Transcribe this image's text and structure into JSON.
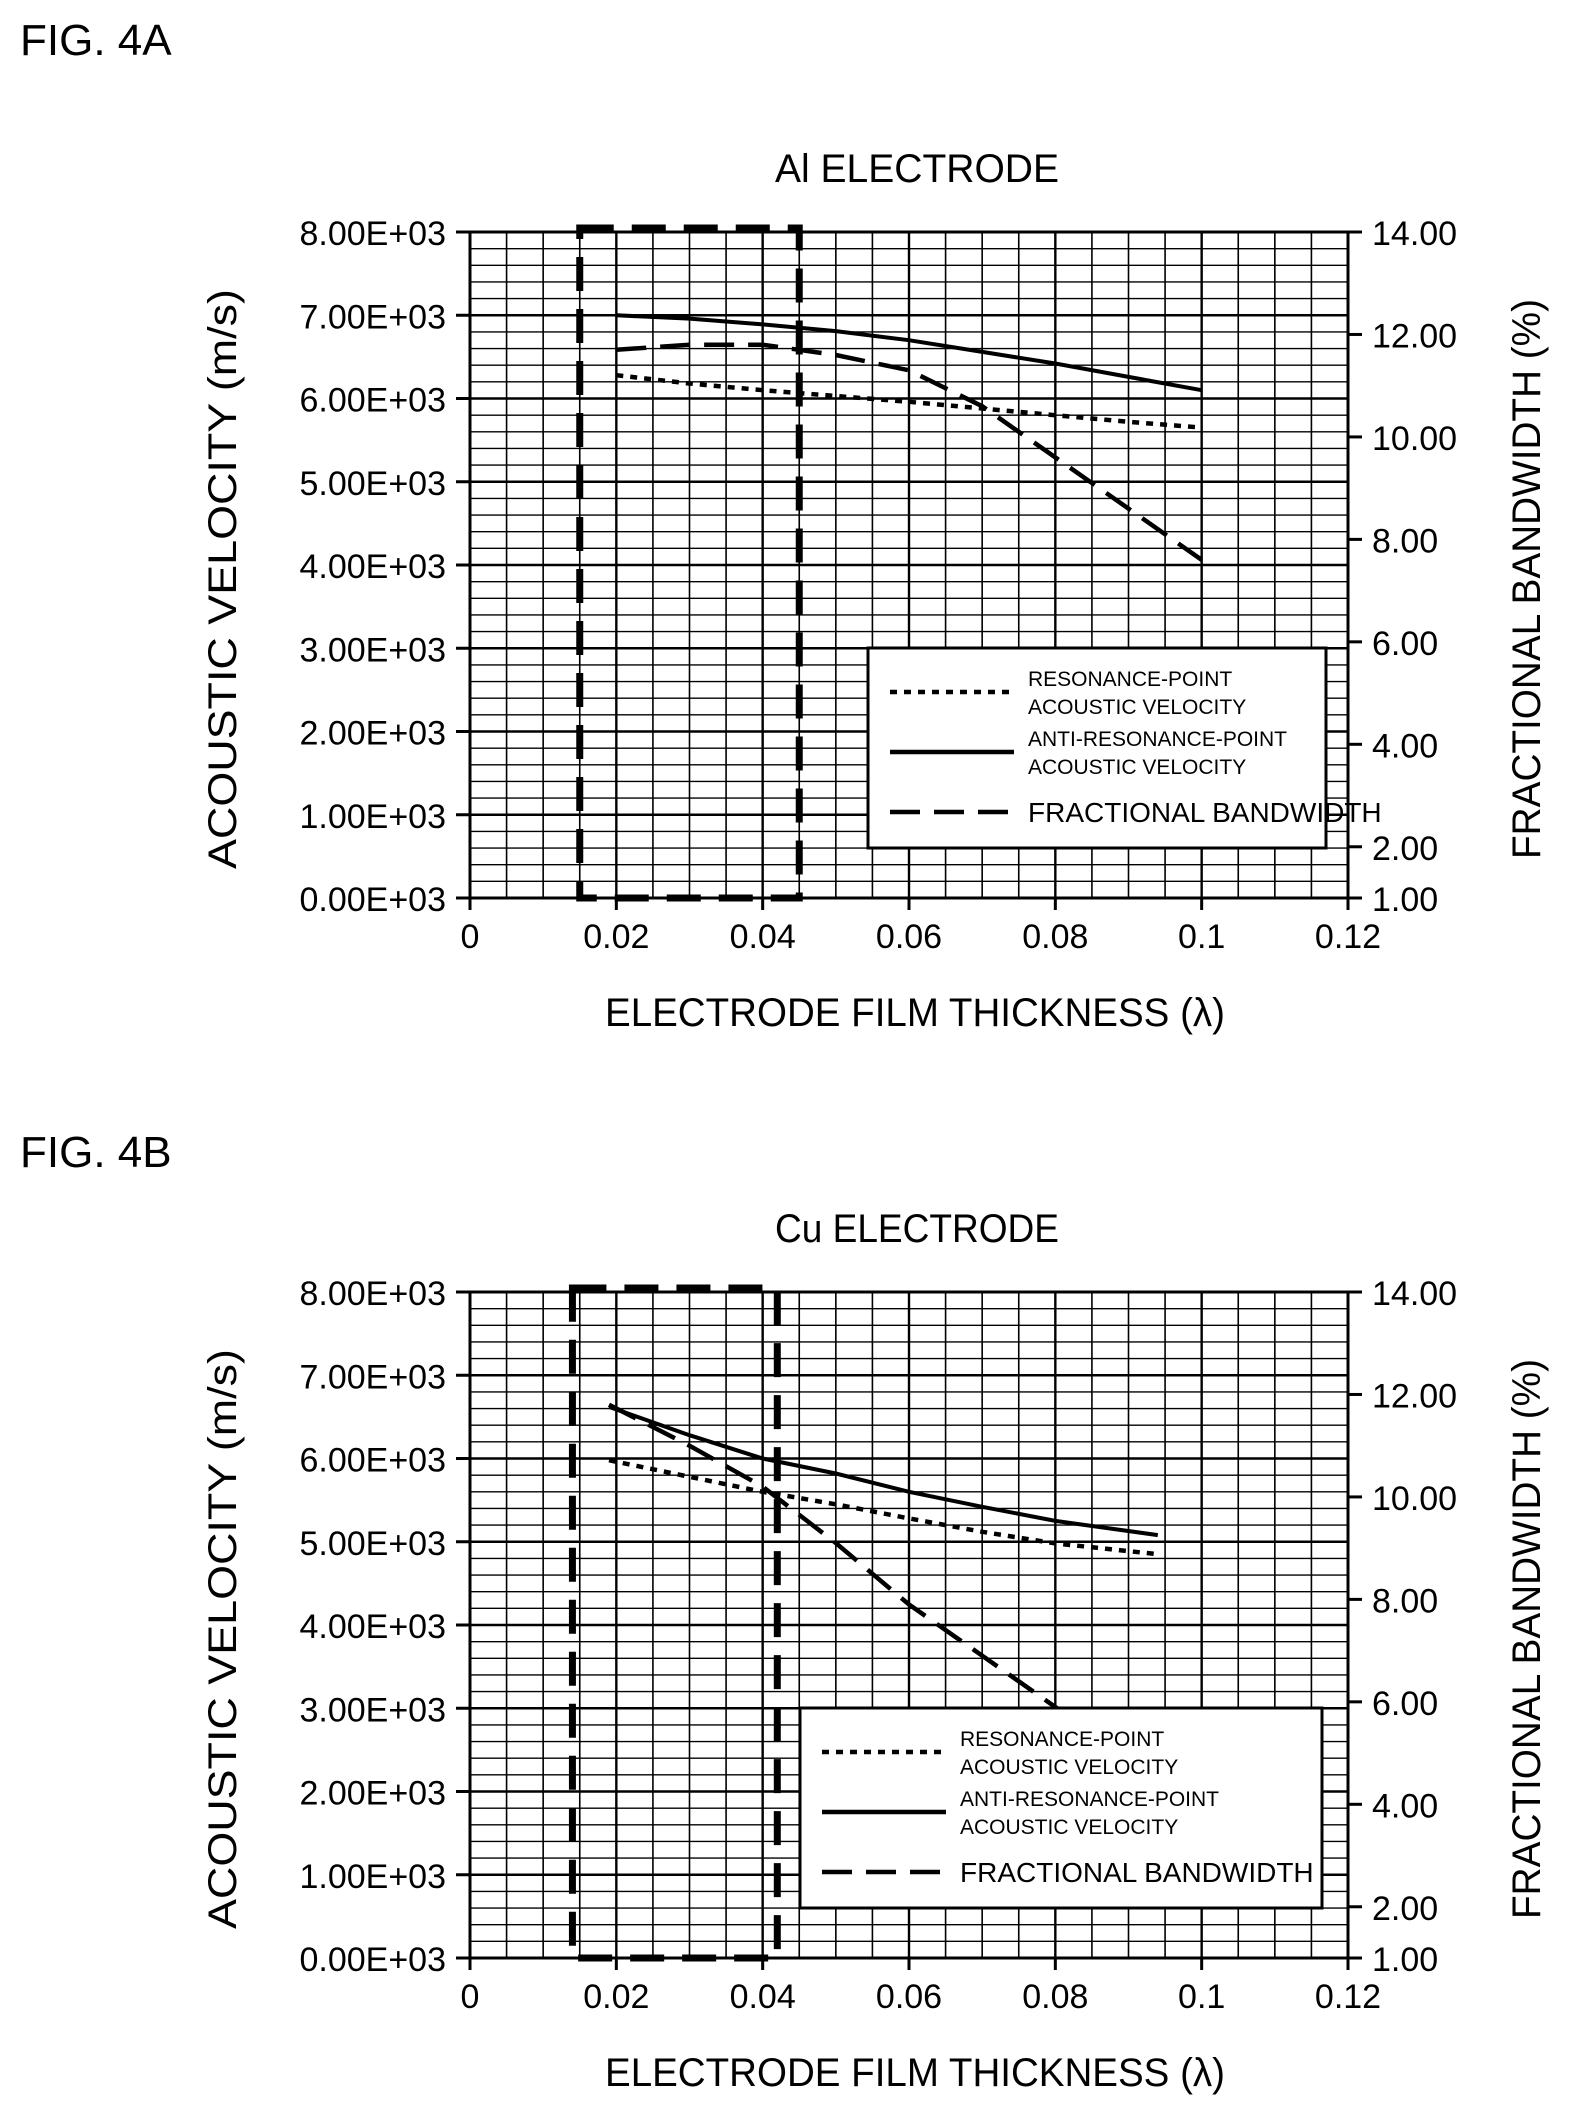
{
  "figures": {
    "fig_a_label": "FIG. 4A",
    "fig_b_label": "FIG. 4B"
  },
  "chart_data": [
    {
      "type": "line",
      "title": "Al ELECTRODE",
      "xlabel": "ELECTRODE FILM THICKNESS (λ)",
      "ylabel": "ACOUSTIC VELOCITY (m/s)",
      "y2label": "FRACTIONAL BANDWIDTH (%)",
      "xlim": [
        0,
        0.12
      ],
      "ylim": [
        0,
        8000
      ],
      "y2lim": [
        1.0,
        14.0
      ],
      "xticks": [
        "0",
        "0.02",
        "0.04",
        "0.06",
        "0.08",
        "0.1",
        "0.12"
      ],
      "yticks": [
        "0.00E+03",
        "1.00E+03",
        "2.00E+03",
        "3.00E+03",
        "4.00E+03",
        "5.00E+03",
        "6.00E+03",
        "7.00E+03",
        "8.00E+03"
      ],
      "y2ticks": [
        "1.00",
        "2.00",
        "4.00",
        "6.00",
        "8.00",
        "10.00",
        "12.00",
        "14.00"
      ],
      "grid": true,
      "legend_position": "bottom-right",
      "highlight_range": [
        0.015,
        0.045
      ],
      "series": [
        {
          "name": "RESONANCE-POINT ACOUSTIC VELOCITY",
          "axis": "left",
          "style": "dotted",
          "x": [
            0.02,
            0.03,
            0.04,
            0.05,
            0.06,
            0.07,
            0.08,
            0.09,
            0.1
          ],
          "y": [
            6280,
            6180,
            6100,
            6030,
            5960,
            5880,
            5800,
            5720,
            5650
          ]
        },
        {
          "name": "ANTI-RESONANCE-POINT ACOUSTIC VELOCITY",
          "axis": "left",
          "style": "solid",
          "x": [
            0.02,
            0.03,
            0.04,
            0.05,
            0.06,
            0.07,
            0.08,
            0.09,
            0.1
          ],
          "y": [
            7000,
            6960,
            6890,
            6810,
            6700,
            6560,
            6420,
            6260,
            6100
          ]
        },
        {
          "name": "FRACTIONAL BANDWIDTH",
          "axis": "right",
          "style": "dashed",
          "x": [
            0.02,
            0.03,
            0.04,
            0.05,
            0.06,
            0.07,
            0.08,
            0.09,
            0.1
          ],
          "y": [
            11.7,
            11.8,
            11.8,
            11.6,
            11.3,
            10.6,
            9.6,
            8.6,
            7.6
          ]
        }
      ],
      "legend": [
        {
          "line1": "RESONANCE-POINT",
          "line2": "ACOUSTIC VELOCITY",
          "style": "dotted"
        },
        {
          "line1": "ANTI-RESONANCE-POINT",
          "line2": "ACOUSTIC VELOCITY",
          "style": "solid"
        },
        {
          "line1": "FRACTIONAL BANDWIDTH",
          "line2": "",
          "style": "dashed"
        }
      ]
    },
    {
      "type": "line",
      "title": "Cu ELECTRODE",
      "xlabel": "ELECTRODE FILM THICKNESS (λ)",
      "ylabel": "ACOUSTIC VELOCITY (m/s)",
      "y2label": "FRACTIONAL BANDWIDTH (%)",
      "xlim": [
        0,
        0.12
      ],
      "ylim": [
        0,
        8000
      ],
      "y2lim": [
        1.0,
        14.0
      ],
      "xticks": [
        "0",
        "0.02",
        "0.04",
        "0.06",
        "0.08",
        "0.1",
        "0.12"
      ],
      "yticks": [
        "0.00E+03",
        "1.00E+03",
        "2.00E+03",
        "3.00E+03",
        "4.00E+03",
        "5.00E+03",
        "6.00E+03",
        "7.00E+03",
        "8.00E+03"
      ],
      "y2ticks": [
        "1.00",
        "2.00",
        "4.00",
        "6.00",
        "8.00",
        "10.00",
        "12.00",
        "14.00"
      ],
      "grid": true,
      "legend_position": "bottom-right",
      "highlight_range": [
        0.014,
        0.042
      ],
      "series": [
        {
          "name": "RESONANCE-POINT ACOUSTIC VELOCITY",
          "axis": "left",
          "style": "dotted",
          "x": [
            0.019,
            0.03,
            0.04,
            0.05,
            0.06,
            0.07,
            0.08,
            0.094
          ],
          "y": [
            5980,
            5780,
            5600,
            5450,
            5280,
            5120,
            4980,
            4850
          ]
        },
        {
          "name": "ANTI-RESONANCE-POINT ACOUSTIC VELOCITY",
          "axis": "left",
          "style": "solid",
          "x": [
            0.019,
            0.03,
            0.04,
            0.05,
            0.06,
            0.07,
            0.08,
            0.094
          ],
          "y": [
            6620,
            6280,
            6000,
            5820,
            5600,
            5420,
            5250,
            5080
          ]
        },
        {
          "name": "FRACTIONAL BANDWIDTH",
          "axis": "right",
          "style": "dashed",
          "x": [
            0.019,
            0.03,
            0.04,
            0.05,
            0.06,
            0.07,
            0.08,
            0.094
          ],
          "y": [
            11.8,
            11.0,
            10.2,
            9.1,
            7.9,
            6.9,
            5.9,
            4.6
          ]
        }
      ],
      "legend": [
        {
          "line1": "RESONANCE-POINT",
          "line2": "ACOUSTIC VELOCITY",
          "style": "dotted"
        },
        {
          "line1": "ANTI-RESONANCE-POINT",
          "line2": "ACOUSTIC VELOCITY",
          "style": "solid"
        },
        {
          "line1": "FRACTIONAL BANDWIDTH",
          "line2": "",
          "style": "dashed"
        }
      ]
    }
  ]
}
